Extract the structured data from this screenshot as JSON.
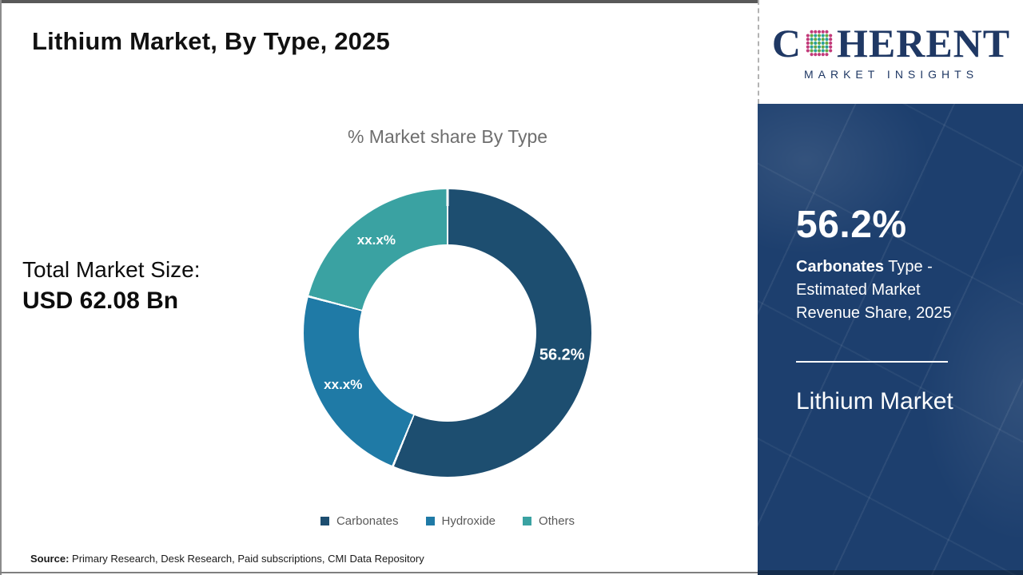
{
  "page": {
    "title": "Lithium Market, By Type, 2025"
  },
  "chart": {
    "title": "% Market share By Type"
  },
  "total_market": {
    "label": "Total Market Size:",
    "value": "USD 62.08 Bn"
  },
  "legend": {
    "items": [
      "Carbonates",
      "Hydroxide",
      "Others"
    ]
  },
  "source": {
    "label": "Source:",
    "text": " Primary Research, Desk Research, Paid subscriptions, CMI Data Repository"
  },
  "brand": {
    "name_first": "C",
    "name_rest": "HERENT",
    "subtitle": "MARKET INSIGHTS",
    "navy": "#1f3864",
    "globe_rim_color": "#c23a7a",
    "globe_dot_color_a": "#2aa198",
    "globe_dot_color_b": "#63a844"
  },
  "sidebar": {
    "stat_value": "56.2%",
    "desc_bold": "Carbonates",
    "desc_rest": " Type -",
    "desc_line2": "Estimated Market",
    "desc_line3": "Revenue Share, 2025",
    "market_name": "Lithium Market",
    "background": "#1d3f6e"
  },
  "chart_data": {
    "type": "pie",
    "subtype": "donut",
    "title": "% Market share By Type",
    "categories": [
      "Carbonates",
      "Hydroxide",
      "Others"
    ],
    "values": [
      56.2,
      22.9,
      20.9
    ],
    "display_labels": [
      "56.2%",
      "xx.x%",
      "xx.x%"
    ],
    "colors": [
      "#1d4e70",
      "#1f7aa6",
      "#3aa2a2"
    ],
    "label_color": "#ffffff",
    "start_angle_deg": 0,
    "direction": "clockwise",
    "inner_radius_ratio": 0.61,
    "legend_position": "bottom",
    "year": "2025",
    "total_market_size": "USD 62.08 Bn"
  }
}
